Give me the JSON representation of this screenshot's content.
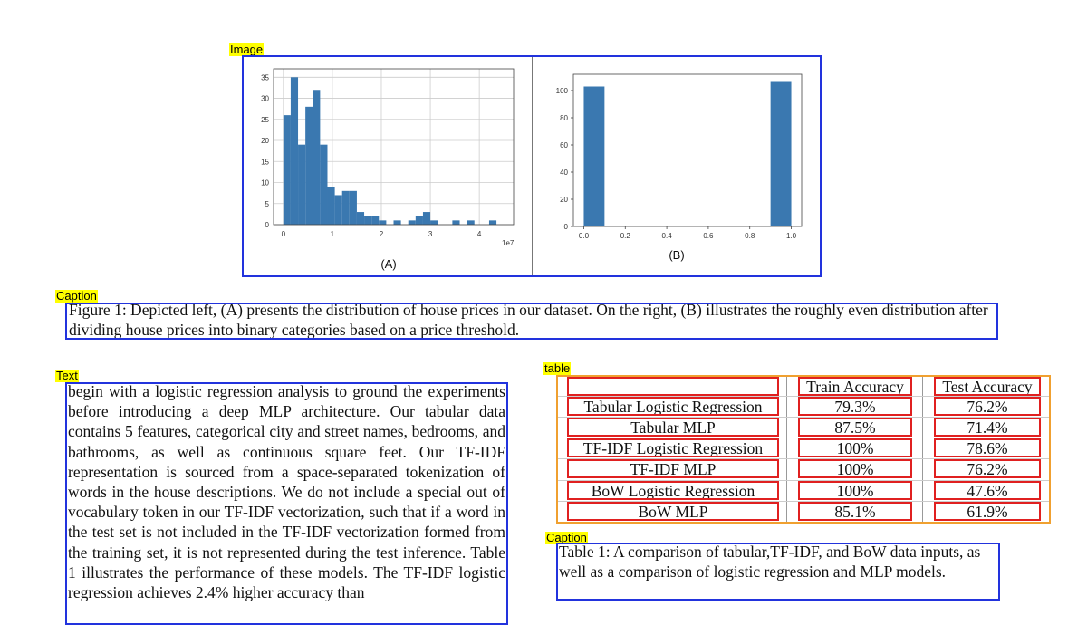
{
  "labels": {
    "image": "Image",
    "caption1": "Caption",
    "text": "Text",
    "table": "table",
    "caption2": "Caption"
  },
  "figure": {
    "panel_a_label": "(A)",
    "panel_b_label": "(B)"
  },
  "chart_data": [
    {
      "type": "bar",
      "panel": "(A)",
      "x_tick_labels": [
        "0",
        "1",
        "2",
        "3",
        "4"
      ],
      "x_exponent_label": "1e7",
      "y_tick_labels": [
        "0",
        "5",
        "10",
        "15",
        "20",
        "25",
        "30",
        "35"
      ],
      "xlim": [
        -0.2,
        4.7
      ],
      "ylim": [
        0,
        37
      ],
      "bin_width": 0.15,
      "bin_starts": [
        0.0,
        0.15,
        0.3,
        0.45,
        0.6,
        0.75,
        0.9,
        1.05,
        1.2,
        1.35,
        1.5,
        1.65,
        1.8,
        1.95,
        2.1,
        2.25,
        2.4,
        2.55,
        2.7,
        2.85,
        3.0,
        3.15,
        3.3,
        3.45,
        3.6,
        3.75,
        3.9,
        4.05,
        4.2,
        4.35
      ],
      "values": [
        26,
        35,
        19,
        28,
        32,
        19,
        9,
        7,
        8,
        8,
        3,
        2,
        2,
        1,
        0,
        1,
        0,
        1,
        2,
        3,
        1,
        0,
        0,
        1,
        0,
        1,
        0,
        0,
        1,
        0
      ],
      "grid": true
    },
    {
      "type": "bar",
      "panel": "(B)",
      "x_tick_labels": [
        "0.0",
        "0.2",
        "0.4",
        "0.6",
        "0.8",
        "1.0"
      ],
      "y_tick_labels": [
        "0",
        "20",
        "40",
        "60",
        "80",
        "100"
      ],
      "xlim": [
        -0.05,
        1.05
      ],
      "ylim": [
        0,
        112
      ],
      "bars": [
        {
          "x_start": 0.0,
          "x_end": 0.1,
          "value": 103
        },
        {
          "x_start": 0.9,
          "x_end": 1.0,
          "value": 107
        }
      ],
      "grid": false
    }
  ],
  "caption1": {
    "text": "Figure 1: Depicted left, (A) presents the distribution of house prices in our dataset. On the right, (B) illustrates the roughly even distribution after dividing house prices into binary categories based on a price threshold."
  },
  "body_text": {
    "text": "begin with a logistic regression analysis to ground the experiments before introducing a deep MLP architecture. Our tabular data contains 5 features, categorical city and street names, bedrooms, and bathrooms, as well as continuous square feet. Our TF-IDF representation is sourced from a space-separated tokenization of words in the house descriptions. We do not include a special out of vocabulary token in our TF-IDF vectorization, such that if a word in the test set is not included in the TF-IDF vectorization formed from the training set, it is not represented during the test inference. Table 1 illustrates the performance of these models. The TF-IDF logistic regression achieves 2.4% higher accuracy than"
  },
  "table": {
    "headers": [
      "",
      "Train Accuracy",
      "Test Accuracy"
    ],
    "rows": [
      [
        "Tabular Logistic Regression",
        "79.3%",
        "76.2%"
      ],
      [
        "Tabular MLP",
        "87.5%",
        "71.4%"
      ],
      [
        "TF-IDF Logistic Regression",
        "100%",
        "78.6%"
      ],
      [
        "TF-IDF MLP",
        "100%",
        "76.2%"
      ],
      [
        "BoW Logistic Regression",
        "100%",
        "47.6%"
      ],
      [
        "BoW MLP",
        "85.1%",
        "61.9%"
      ]
    ]
  },
  "caption2": {
    "text": "Table 1: A comparison of tabular,TF-IDF, and BoW data inputs, as well as a comparison of logistic regression and MLP models."
  },
  "colors": {
    "bar": "#3a78b0",
    "blue_box": "#2233dd",
    "red_box": "#e02020",
    "orange_box": "#f0a030",
    "label_bg": "#ffff00"
  }
}
